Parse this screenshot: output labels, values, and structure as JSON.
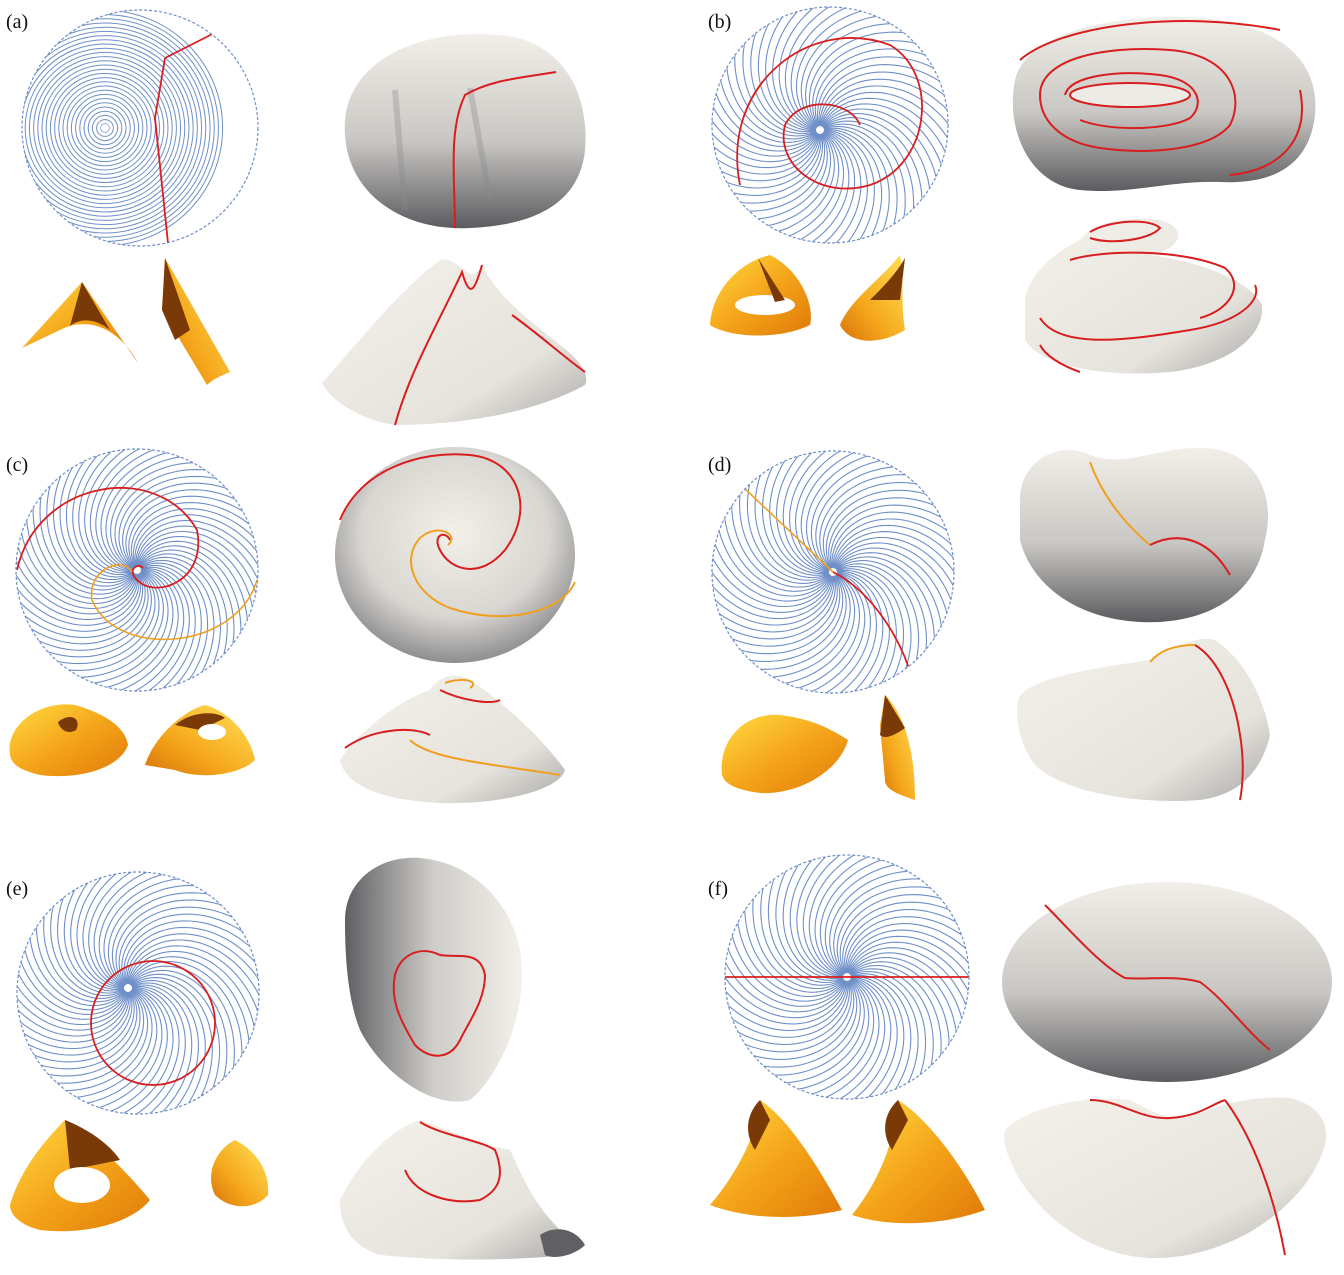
{
  "figure": {
    "panels": [
      {
        "id": "a",
        "label": "(a)",
        "pattern": "a"
      },
      {
        "id": "b",
        "label": "(b)",
        "pattern": "b"
      },
      {
        "id": "c",
        "label": "(c)",
        "pattern": "c"
      },
      {
        "id": "d",
        "label": "(d)",
        "pattern": "d"
      },
      {
        "id": "e",
        "label": "(e)",
        "pattern": "e"
      },
      {
        "id": "f",
        "label": "(f)",
        "pattern": "f"
      }
    ],
    "colors": {
      "crease_pattern": "#6f8fc8",
      "boundary": "#6f8fc8",
      "mountain_crease": "#d81e1e",
      "valley_crease": "#f0a020",
      "surface_light": "#efece6",
      "surface_dark": "#5c5c60",
      "cone_light": "#ffd23a",
      "cone_mid": "#f39a12",
      "cone_dark": "#7a3a08"
    }
  }
}
